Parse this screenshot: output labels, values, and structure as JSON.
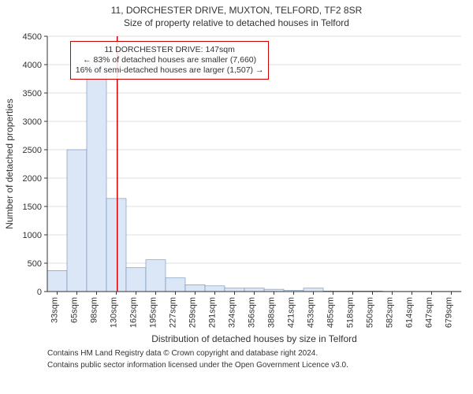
{
  "title": "11, DORCHESTER DRIVE, MUXTON, TELFORD, TF2 8SR",
  "subtitle": "Size of property relative to detached houses in Telford",
  "ylabel": "Number of detached properties",
  "xlabel": "Distribution of detached houses by size in Telford",
  "chart": {
    "type": "histogram",
    "background": "#ffffff",
    "grid_color": "#bfbfbf",
    "axis_color": "#333333",
    "bar_fill": "#dbe7f6",
    "bar_stroke": "#6d8bb3",
    "bar_stroke_width": 0.6,
    "marker_color": "#cc0000",
    "ylim": [
      0,
      4500
    ],
    "ytick_step": 500,
    "categories": [
      "33sqm",
      "65sqm",
      "98sqm",
      "130sqm",
      "162sqm",
      "195sqm",
      "227sqm",
      "259sqm",
      "291sqm",
      "324sqm",
      "356sqm",
      "388sqm",
      "421sqm",
      "453sqm",
      "485sqm",
      "518sqm",
      "550sqm",
      "582sqm",
      "614sqm",
      "647sqm",
      "679sqm"
    ],
    "values": [
      370,
      2500,
      4050,
      1640,
      420,
      560,
      240,
      120,
      100,
      60,
      60,
      40,
      20,
      60,
      10,
      10,
      10,
      5,
      5,
      5,
      5
    ],
    "marker_index": 3,
    "marker_offset": 0.55
  },
  "annotation": {
    "line1": "11 DORCHESTER DRIVE: 147sqm",
    "line2": "← 83% of detached houses are smaller (7,660)",
    "line3": "16% of semi-detached houses are larger (1,507) →"
  },
  "credit1": "Contains HM Land Registry data © Crown copyright and database right 2024.",
  "credit2": "Contains public sector information licensed under the Open Government Licence v3.0."
}
